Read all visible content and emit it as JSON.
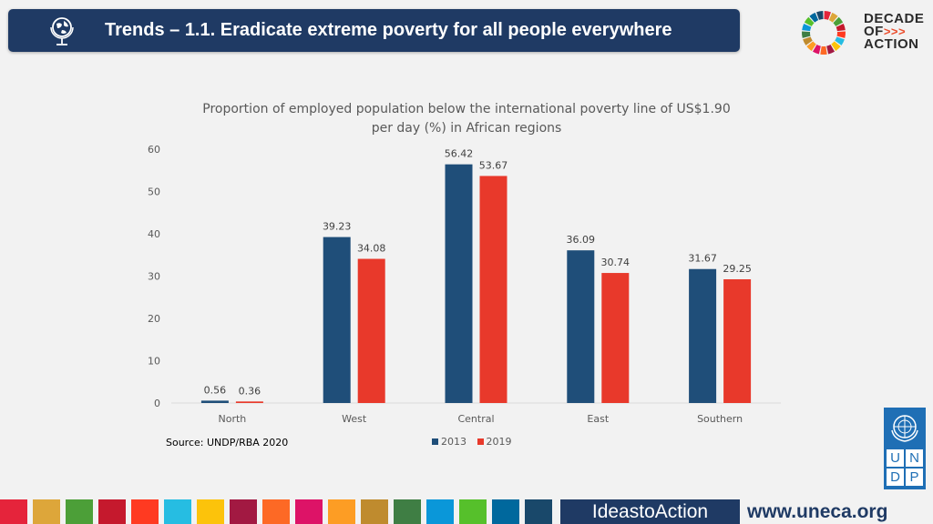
{
  "header": {
    "title": "Trends – 1.1. Eradicate extreme poverty for all people everywhere",
    "icon": "globe-icon",
    "background_color": "#1f3a64"
  },
  "logo": {
    "line1": "DECADE",
    "line2": "OF",
    "arrows": ">>>",
    "line3": "ACTION"
  },
  "chart_data": {
    "type": "bar",
    "title": "Proportion of employed population below the international poverty line of US$1.90 per day (%) in African regions",
    "categories": [
      "North",
      "West",
      "Central",
      "East",
      "Southern"
    ],
    "series": [
      {
        "name": "2013",
        "color": "#1f4e79",
        "values": [
          0.56,
          39.23,
          56.42,
          36.09,
          31.67
        ]
      },
      {
        "name": "2019",
        "color": "#e8392b",
        "values": [
          0.36,
          34.08,
          53.67,
          30.74,
          29.25
        ]
      }
    ],
    "ylim": [
      0,
      60
    ],
    "yticks": [
      0,
      10,
      20,
      30,
      40,
      50,
      60
    ],
    "xlabel": "",
    "ylabel": "",
    "grid": false,
    "legend": "bottom"
  },
  "source": "Source: UNDP/RBA 2020",
  "undp": {
    "letters": [
      "U",
      "N",
      "D",
      "P"
    ]
  },
  "footer": {
    "ideas": "IdeastoAction",
    "url": "www.uneca.org",
    "strip_colors": [
      "#e5243b",
      "#dda63a",
      "#4c9f38",
      "#c5192d",
      "#ff3a21",
      "#26bde2",
      "#fcc30b",
      "#a21942",
      "#fd6925",
      "#dd1367",
      "#fd9d24",
      "#bf8b2e",
      "#3f7e44",
      "#0a97d9",
      "#56c02b",
      "#00689d",
      "#19486a"
    ]
  }
}
